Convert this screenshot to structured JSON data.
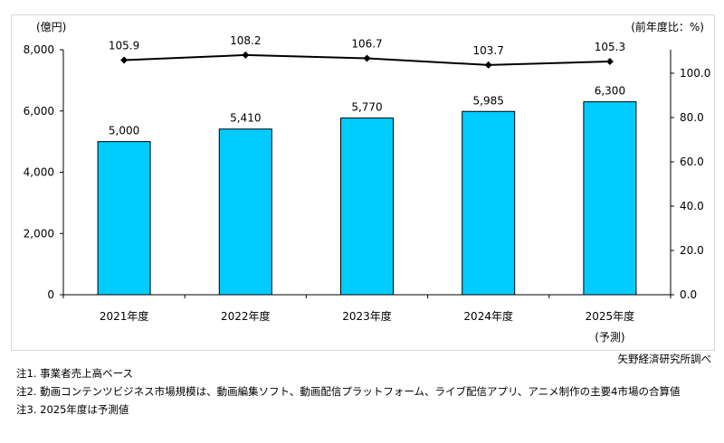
{
  "chart_data": {
    "type": "bar",
    "categories": [
      "2021年度",
      "2022年度",
      "2023年度",
      "2024年度",
      "2025年度"
    ],
    "category_sublabels": [
      "",
      "",
      "",
      "",
      "(予測)"
    ],
    "series": [
      {
        "type": "bar",
        "axis": "left",
        "values": [
          5000,
          5410,
          5770,
          5985,
          6300
        ],
        "labels": [
          "5,000",
          "5,410",
          "5,770",
          "5,985",
          "6,300"
        ],
        "color": "#00ccff"
      },
      {
        "type": "line",
        "axis": "right",
        "values": [
          105.9,
          108.2,
          106.7,
          103.7,
          105.3
        ],
        "labels": [
          "105.9",
          "108.2",
          "106.7",
          "103.7",
          "105.3"
        ],
        "color": "#000000"
      }
    ],
    "ylabel": "(億円)",
    "y2label": "(前年度比：%)",
    "ylim": [
      0,
      8000
    ],
    "yticks": [
      "0",
      "2,000",
      "4,000",
      "6,000",
      "8,000"
    ],
    "y2lim": [
      0,
      110.6
    ],
    "y2ticks": [
      "0.0",
      "20.0",
      "40.0",
      "60.0",
      "80.0",
      "100.0"
    ],
    "grid": false
  },
  "source": "矢野経済研究所調べ",
  "notes": [
    "注1.  事業者売上高ベース",
    "注2.  動画コンテンツビジネス市場規模は、動画編集ソフト、動画配信プラットフォーム、ライブ配信アプリ、アニメ制作の主要4市場の合算値",
    "注3.  2025年度は予測値"
  ]
}
